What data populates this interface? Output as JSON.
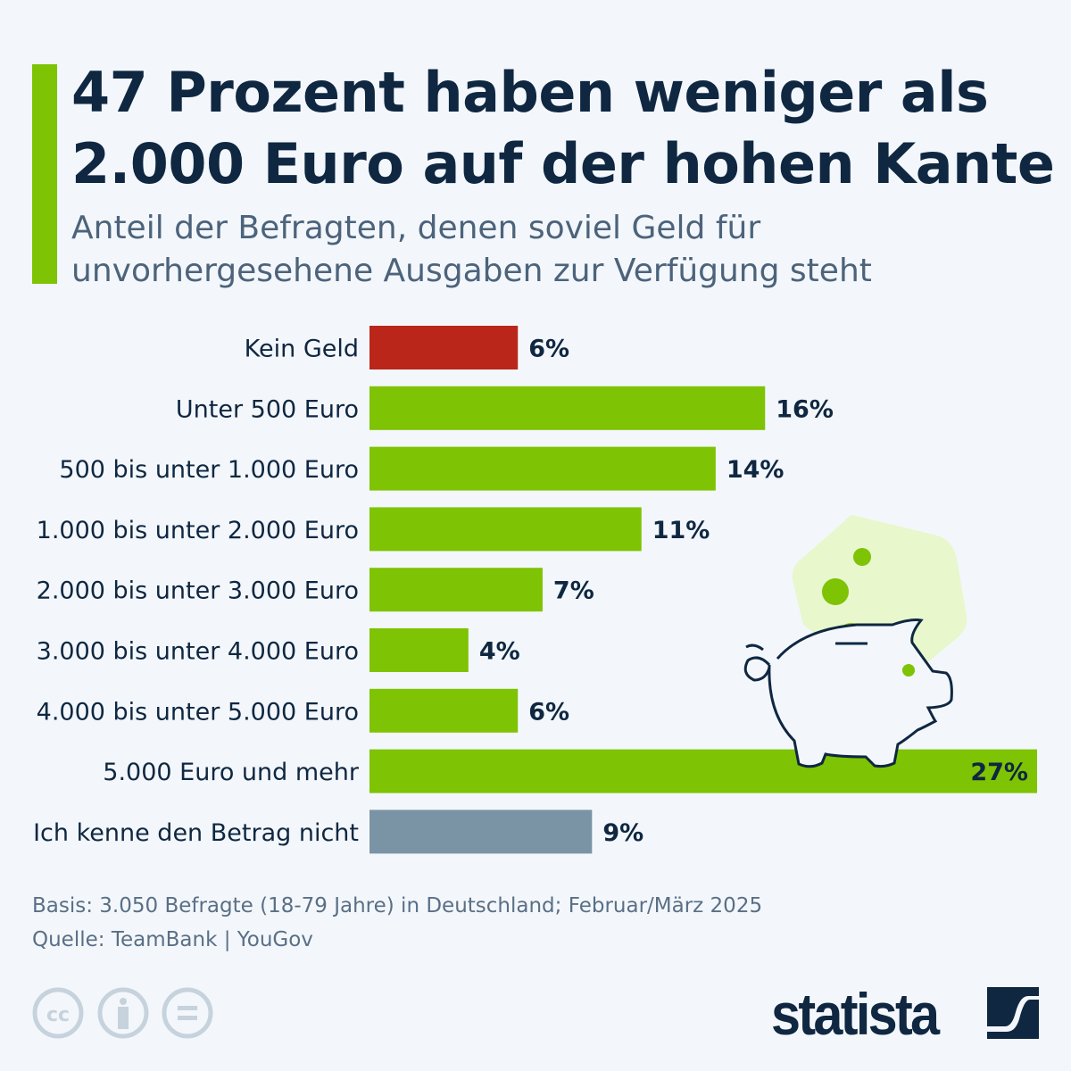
{
  "title_lines": [
    "47 Prozent haben weniger als",
    "2.000 Euro auf der hohen Kante"
  ],
  "subtitle_lines": [
    "Anteil der Befragten, denen soviel Geld für",
    "unvorhergesehene Ausgaben zur Verfügung steht"
  ],
  "chart_data": {
    "type": "bar",
    "orientation": "horizontal",
    "unit": "%",
    "categories": [
      "Kein Geld",
      "Unter 500 Euro",
      "500 bis unter 1.000 Euro",
      "1.000 bis unter 2.000 Euro",
      "2.000 bis unter 3.000 Euro",
      "3.000 bis unter 4.000 Euro",
      "4.000 bis unter 5.000 Euro",
      "5.000 Euro und mehr",
      "Ich kenne den Betrag nicht"
    ],
    "values": [
      6,
      16,
      14,
      11,
      7,
      4,
      6,
      27,
      9
    ],
    "labels": [
      "6%",
      "16%",
      "14%",
      "11%",
      "7%",
      "4%",
      "6%",
      "27%",
      "9%"
    ],
    "colors": [
      "#bb261a",
      "#7ec304",
      "#7ec304",
      "#7ec304",
      "#7ec304",
      "#7ec304",
      "#7ec304",
      "#7ec304",
      "#7b94a5"
    ],
    "xlim": [
      0,
      27
    ],
    "grid": false
  },
  "footer": {
    "basis": "Basis: 3.050 Befragte (18-79 Jahre) in Deutschland; Februar/März 2025",
    "source": "Quelle: TeamBank | YouGov",
    "logo": "statista"
  },
  "icons": [
    "cc-icon",
    "attribution-icon",
    "no-derivatives-icon",
    "piggy-bank-icon"
  ]
}
